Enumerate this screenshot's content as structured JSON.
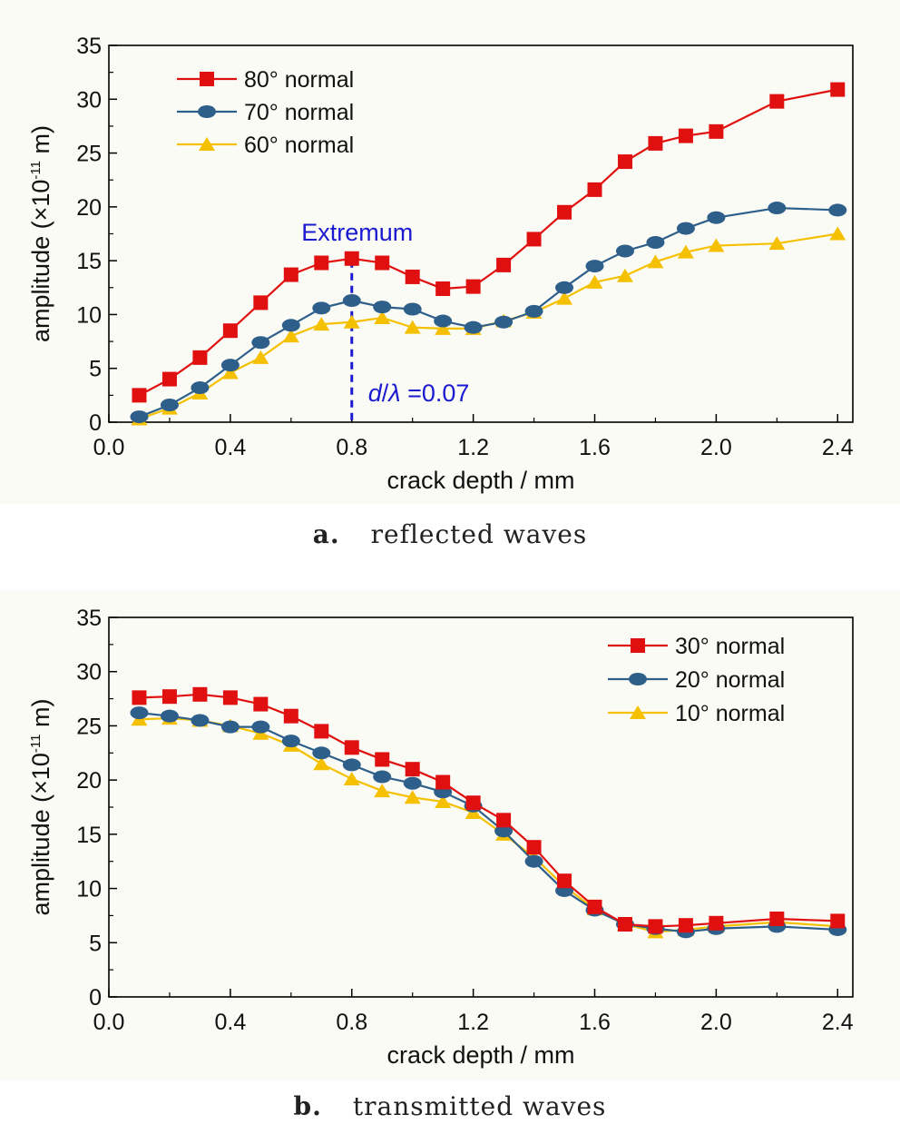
{
  "chart_data": [
    {
      "type": "line",
      "xlabel": "crack depth / mm",
      "ylabel_main": "amplitude (×10",
      "ylabel_exp": "-11",
      "ylabel_end": " m)",
      "xlim": [
        0.0,
        2.45
      ],
      "ylim": [
        0,
        35
      ],
      "xticks": [
        "0.0",
        "0.4",
        "0.8",
        "1.2",
        "1.6",
        "2.0",
        "2.4"
      ],
      "yticks": [
        "0",
        "5",
        "10",
        "15",
        "20",
        "25",
        "30",
        "35"
      ],
      "legend_position": "top-left",
      "caption_letter": "a.",
      "caption_text": "reflected waves",
      "annotation": {
        "label": "Extremum",
        "x": 0.8,
        "ratio_d": "d",
        "ratio_slash": "/",
        "ratio_lambda": "λ",
        "ratio_value": " =0.07",
        "color": "#1a1ad0"
      },
      "x": [
        0.1,
        0.2,
        0.3,
        0.4,
        0.5,
        0.6,
        0.7,
        0.8,
        0.9,
        1.0,
        1.1,
        1.2,
        1.3,
        1.4,
        1.5,
        1.6,
        1.7,
        1.8,
        1.9,
        2.0,
        2.2,
        2.4
      ],
      "series": [
        {
          "name": "80° normal",
          "color": "#e01010",
          "marker": "square",
          "values": [
            2.5,
            4.0,
            6.0,
            8.5,
            11.1,
            13.7,
            14.8,
            15.2,
            14.8,
            13.5,
            12.4,
            12.6,
            14.6,
            17.0,
            19.5,
            21.6,
            24.2,
            25.9,
            26.6,
            27.0,
            29.8,
            30.9
          ]
        },
        {
          "name": "70° normal",
          "color": "#2e5f8a",
          "marker": "ellipse",
          "values": [
            0.5,
            1.6,
            3.2,
            5.3,
            7.4,
            9.0,
            10.6,
            11.3,
            10.7,
            10.5,
            9.4,
            8.8,
            9.3,
            10.3,
            12.5,
            14.5,
            15.9,
            16.7,
            18.0,
            19.0,
            19.9,
            19.7
          ]
        },
        {
          "name": "60° normal",
          "color": "#f5c000",
          "marker": "triangle",
          "values": [
            0.3,
            1.3,
            2.7,
            4.6,
            6.0,
            8.0,
            9.1,
            9.3,
            9.7,
            8.8,
            8.7,
            8.7,
            9.4,
            10.2,
            11.5,
            13.0,
            13.6,
            14.9,
            15.8,
            16.4,
            16.6,
            17.5
          ]
        }
      ]
    },
    {
      "type": "line",
      "xlabel": "crack depth / mm",
      "ylabel_main": "amplitude (×10",
      "ylabel_exp": "-11",
      "ylabel_end": " m)",
      "xlim": [
        0.0,
        2.45
      ],
      "ylim": [
        0,
        35
      ],
      "xticks": [
        "0.0",
        "0.4",
        "0.8",
        "1.2",
        "1.6",
        "2.0",
        "2.4"
      ],
      "yticks": [
        "0",
        "5",
        "10",
        "15",
        "20",
        "25",
        "30",
        "35"
      ],
      "legend_position": "top-right",
      "caption_letter": "b.",
      "caption_text": "transmitted waves",
      "x": [
        0.1,
        0.2,
        0.3,
        0.4,
        0.5,
        0.6,
        0.7,
        0.8,
        0.9,
        1.0,
        1.1,
        1.2,
        1.3,
        1.4,
        1.5,
        1.6,
        1.7,
        1.8,
        1.9,
        2.0,
        2.2,
        2.4
      ],
      "series": [
        {
          "name": "30° normal",
          "color": "#e01010",
          "marker": "square",
          "values": [
            27.6,
            27.7,
            27.9,
            27.6,
            27.0,
            25.9,
            24.5,
            23.0,
            21.9,
            21.0,
            19.8,
            17.9,
            16.3,
            13.8,
            10.7,
            8.3,
            6.7,
            6.5,
            6.6,
            6.8,
            7.2,
            7.0
          ]
        },
        {
          "name": "20° normal",
          "color": "#2e5f8a",
          "marker": "ellipse",
          "values": [
            26.2,
            25.9,
            25.5,
            24.9,
            24.9,
            23.6,
            22.5,
            21.4,
            20.3,
            19.7,
            18.9,
            17.6,
            15.3,
            12.5,
            9.8,
            8.0,
            6.7,
            6.3,
            6.0,
            6.3,
            6.5,
            6.2
          ]
        },
        {
          "name": "10° normal",
          "color": "#f5c000",
          "marker": "triangle",
          "values": [
            25.6,
            25.7,
            25.5,
            25.0,
            24.3,
            23.2,
            21.5,
            20.1,
            19.0,
            18.4,
            18.0,
            17.0,
            15.0,
            12.9,
            10.2,
            8.1,
            6.7,
            6.0,
            6.2,
            6.5,
            6.9,
            6.5
          ]
        }
      ]
    }
  ]
}
